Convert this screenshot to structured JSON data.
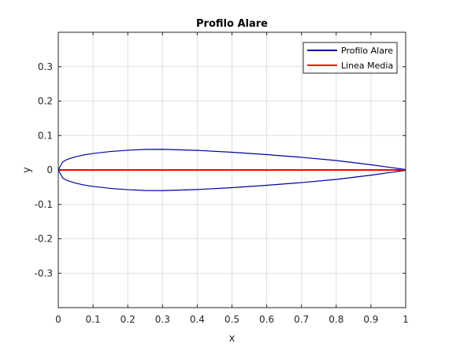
{
  "chart_data": {
    "type": "line",
    "title": "Profilo Alare",
    "xlabel": "x",
    "ylabel": "y",
    "xlim": [
      0,
      1
    ],
    "ylim": [
      -0.4,
      0.4
    ],
    "xticks": [
      0,
      0.1,
      0.2,
      0.3,
      0.4,
      0.5,
      0.6,
      0.7,
      0.8,
      0.9,
      1
    ],
    "xtick_labels": [
      "0",
      "0.1",
      "0.2",
      "0.3",
      "0.4",
      "0.5",
      "0.6",
      "0.7",
      "0.8",
      "0.9",
      "1"
    ],
    "yticks": [
      -0.3,
      -0.2,
      -0.1,
      0,
      0.1,
      0.2,
      0.3
    ],
    "ytick_labels": [
      "-0.3",
      "-0.2",
      "-0.1",
      "0",
      "0.1",
      "0.2",
      "0.3"
    ],
    "grid": true,
    "legend_position": "top-right",
    "series": [
      {
        "name": "Profilo Alare",
        "color": "#0000a0",
        "x": [
          1.0,
          0.95,
          0.9,
          0.8,
          0.7,
          0.6,
          0.5,
          0.4,
          0.3,
          0.25,
          0.2,
          0.15,
          0.1,
          0.075,
          0.05,
          0.025,
          0.0125,
          0.0,
          0.0125,
          0.025,
          0.05,
          0.075,
          0.1,
          0.15,
          0.2,
          0.25,
          0.3,
          0.4,
          0.5,
          0.6,
          0.7,
          0.8,
          0.9,
          0.95,
          1.0
        ],
        "y": [
          0.0013,
          0.0081,
          0.0151,
          0.0274,
          0.0367,
          0.0446,
          0.0515,
          0.0569,
          0.06,
          0.0598,
          0.0573,
          0.0536,
          0.0478,
          0.0438,
          0.0385,
          0.0303,
          0.0231,
          0.0,
          -0.0231,
          -0.0303,
          -0.0385,
          -0.0438,
          -0.0478,
          -0.0536,
          -0.0573,
          -0.0598,
          -0.06,
          -0.0569,
          -0.0515,
          -0.0446,
          -0.0367,
          -0.0274,
          -0.0151,
          -0.0081,
          -0.0013
        ]
      },
      {
        "name": "Linea Media",
        "color": "#ff0000",
        "x": [
          0,
          1
        ],
        "y": [
          0,
          0
        ]
      }
    ]
  }
}
